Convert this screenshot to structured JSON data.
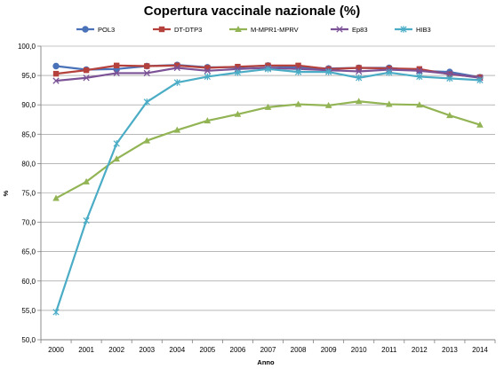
{
  "chart_data": {
    "type": "line",
    "title": "Copertura vaccinale nazionale (%)",
    "xlabel": "Anno",
    "ylabel": "%",
    "categories": [
      "2000",
      "2001",
      "2002",
      "2003",
      "2004",
      "2005",
      "2006",
      "2007",
      "2008",
      "2009",
      "2010",
      "2011",
      "2012",
      "2013",
      "2014"
    ],
    "ylim": [
      50,
      100
    ],
    "ytick_step": 5,
    "ytick_labels": [
      "50,0",
      "55,0",
      "60,0",
      "65,0",
      "70,0",
      "75,0",
      "80,0",
      "85,0",
      "90,0",
      "95,0",
      "100,0"
    ],
    "grid": "horizontal",
    "legend_position": "top",
    "series": [
      {
        "name": "POL3",
        "color": "#4a72b8",
        "marker": "circle",
        "values": [
          96.6,
          96.0,
          96.1,
          96.6,
          96.8,
          96.4,
          96.4,
          96.7,
          96.3,
          96.2,
          96.3,
          96.3,
          95.8,
          95.6,
          94.7
        ]
      },
      {
        "name": "DT-DTP3",
        "color": "#b5413d",
        "marker": "square",
        "values": [
          95.3,
          95.9,
          96.7,
          96.6,
          96.7,
          96.3,
          96.5,
          96.7,
          96.7,
          96.1,
          96.3,
          96.2,
          96.1,
          95.2,
          94.7
        ]
      },
      {
        "name": "M-MPR1-MPRV",
        "color": "#92b454",
        "marker": "triangle",
        "values": [
          74.1,
          76.9,
          80.8,
          83.9,
          85.7,
          87.3,
          88.4,
          89.6,
          90.1,
          89.9,
          90.6,
          90.1,
          90.0,
          88.2,
          86.6
        ]
      },
      {
        "name": "Ep83",
        "color": "#7b5296",
        "marker": "x",
        "values": [
          94.1,
          94.6,
          95.4,
          95.4,
          96.3,
          95.8,
          96.1,
          96.3,
          96.1,
          95.9,
          95.7,
          96.0,
          95.8,
          95.3,
          94.6
        ]
      },
      {
        "name": "HIB3",
        "color": "#4bacc6",
        "marker": "star",
        "values": [
          54.7,
          70.3,
          83.4,
          90.5,
          93.8,
          94.8,
          95.5,
          96.1,
          95.6,
          95.6,
          94.6,
          95.5,
          94.8,
          94.5,
          94.2
        ]
      }
    ]
  }
}
